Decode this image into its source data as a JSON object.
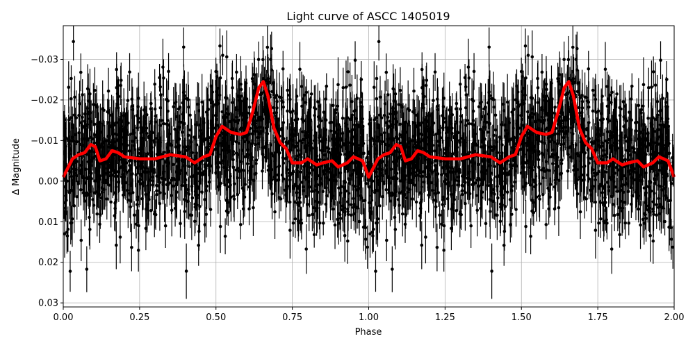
{
  "chart_data": {
    "type": "scatter",
    "title": "Light curve of ASCC 1405019",
    "xlabel": "Phase",
    "ylabel": "Δ Magnitude",
    "xlim": [
      0,
      2
    ],
    "ylim": [
      0.031,
      -0.0383
    ],
    "y_inverted": true,
    "grid": true,
    "xticks": [
      "0.00",
      "0.25",
      "0.50",
      "0.75",
      "1.00",
      "1.25",
      "1.50",
      "1.75",
      "2.00"
    ],
    "xtick_values": [
      0,
      0.25,
      0.5,
      0.75,
      1.0,
      1.25,
      1.5,
      1.75,
      2.0
    ],
    "yticks": [
      "−0.03",
      "−0.02",
      "−0.01",
      "0.00",
      "0.01",
      "0.02",
      "0.03"
    ],
    "ytick_values": [
      -0.03,
      -0.02,
      -0.01,
      0.0,
      0.01,
      0.02,
      0.03
    ],
    "series": [
      {
        "kind": "errorbar-points",
        "color": "#000000"
      },
      {
        "kind": "line",
        "color": "#ff0000",
        "x": [
          0,
          0.03,
          0.05,
          0.07,
          0.09,
          0.105,
          0.12,
          0.14,
          0.16,
          0.18,
          0.2,
          0.25,
          0.3,
          0.35,
          0.4,
          0.43,
          0.46,
          0.48,
          0.5,
          0.52,
          0.55,
          0.58,
          0.6,
          0.62,
          0.64,
          0.655,
          0.67,
          0.69,
          0.71,
          0.73,
          0.75,
          0.78,
          0.8,
          0.83,
          0.85,
          0.88,
          0.9,
          0.93,
          0.95,
          0.98,
          1.0
        ],
        "y": [
          -0.001,
          -0.0055,
          -0.0065,
          -0.007,
          -0.009,
          -0.0085,
          -0.005,
          -0.0055,
          -0.0075,
          -0.007,
          -0.006,
          -0.0055,
          -0.0055,
          -0.0065,
          -0.006,
          -0.0045,
          -0.006,
          -0.0065,
          -0.011,
          -0.0135,
          -0.012,
          -0.0115,
          -0.012,
          -0.017,
          -0.023,
          -0.0245,
          -0.021,
          -0.013,
          -0.0095,
          -0.008,
          -0.0045,
          -0.0045,
          -0.0055,
          -0.004,
          -0.0045,
          -0.005,
          -0.0035,
          -0.0045,
          -0.006,
          -0.005,
          -0.001
        ]
      }
    ]
  }
}
